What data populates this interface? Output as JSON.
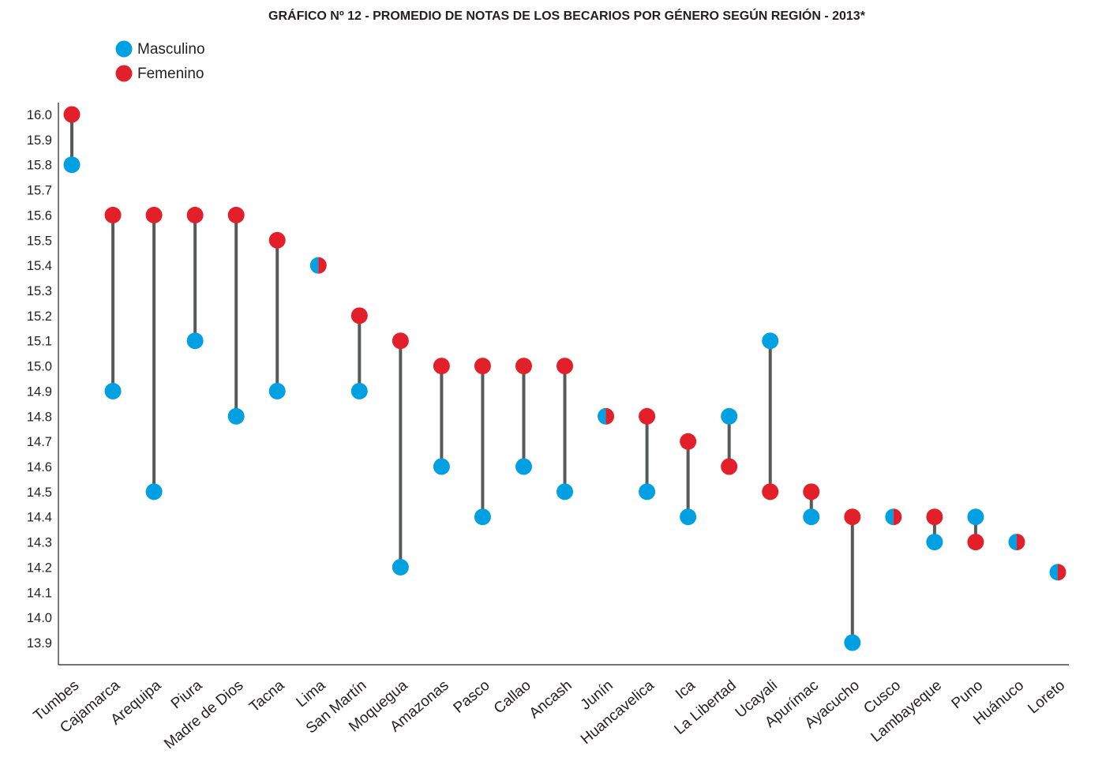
{
  "chart_data": {
    "type": "dumbbell",
    "title": "GRÁFICO Nº 12 - PROMEDIO DE NOTAS DE LOS BECARIOS POR GÉNERO SEGÚN REGIÓN - 2013*",
    "xlabel": "",
    "ylabel": "",
    "ylim": [
      13.9,
      16.0
    ],
    "yticks": [
      "16.0",
      "15.9",
      "15.8",
      "15.7",
      "15.6",
      "15.5",
      "15.4",
      "15.3",
      "15.2",
      "15.1",
      "15.0",
      "14.9",
      "14.8",
      "14.7",
      "14.6",
      "14.5",
      "14.4",
      "14.3",
      "14.2",
      "14.1",
      "14.0",
      "13.9"
    ],
    "grid": false,
    "legend_position": "top-left",
    "categories": [
      "Tumbes",
      "Cajamarca",
      "Arequipa",
      "Piura",
      "Madre de Dios",
      "Tacna",
      "Lima",
      "San Martín",
      "Moquegua",
      "Amazonas",
      "Pasco",
      "Callao",
      "Ancash",
      "Junín",
      "Huancavelica",
      "Ica",
      "La Libertad",
      "Ucayali",
      "Apurímac",
      "Ayacucho",
      "Cusco",
      "Lambayeque",
      "Puno",
      "Huánuco",
      "Loreto"
    ],
    "series": [
      {
        "name": "Masculino",
        "color": "#00a0e3",
        "values": [
          15.8,
          14.9,
          14.5,
          15.1,
          14.8,
          14.9,
          15.4,
          14.9,
          14.2,
          14.6,
          14.4,
          14.6,
          14.5,
          14.8,
          14.5,
          14.4,
          14.8,
          15.1,
          14.4,
          13.9,
          14.4,
          14.3,
          14.4,
          14.3,
          14.18
        ]
      },
      {
        "name": "Femenino",
        "color": "#e3202a",
        "values": [
          16.0,
          15.6,
          15.6,
          15.6,
          15.6,
          15.5,
          15.4,
          15.2,
          15.1,
          15.0,
          15.0,
          15.0,
          15.0,
          14.8,
          14.8,
          14.7,
          14.6,
          14.5,
          14.5,
          14.4,
          14.4,
          14.4,
          14.3,
          14.3,
          14.18
        ]
      }
    ],
    "stem_color": "#58595b"
  }
}
